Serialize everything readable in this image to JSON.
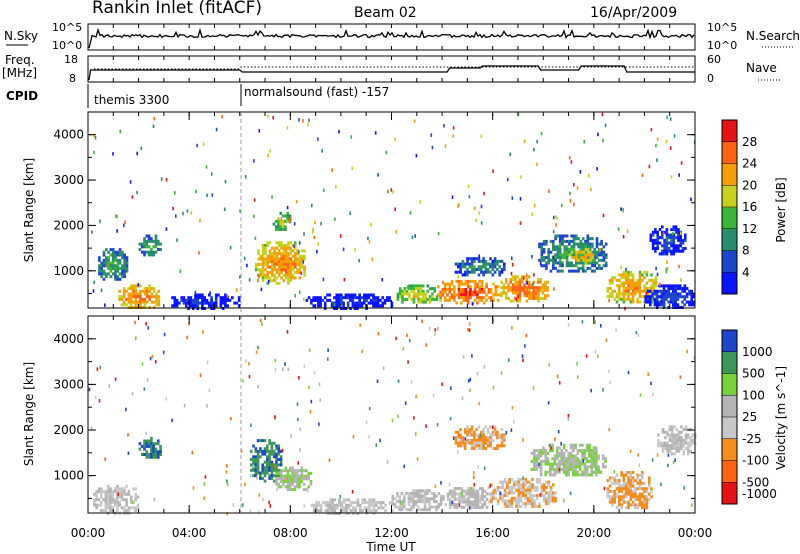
{
  "header": {
    "station": "Rankin Inlet (fitACF)",
    "beam": "Beam 02",
    "date": "16/Apr/2009"
  },
  "top_panels": {
    "nsky_label": "N.Sky",
    "nsky_ticks": [
      "10^5",
      "10^0"
    ],
    "nsearch_label": "N.Search",
    "nsearch_ticks": [
      "10^5",
      "10^0"
    ],
    "freq_label": "Freq.",
    "freq_unit": "[MHz]",
    "freq_ticks": [
      "18",
      "8"
    ],
    "nave_label": "Nave",
    "nave_ticks": [
      "60",
      "0"
    ],
    "cpid_label": "CPID",
    "cpid_segments": [
      {
        "start_hour": 0,
        "name": "themis 3300"
      },
      {
        "start_hour": 6,
        "name": "normalsound (fast) -157"
      }
    ]
  },
  "colors": {
    "power_scale": [
      "#0a14ff",
      "#1e46c8",
      "#2a8c6e",
      "#3cb43c",
      "#c8d21e",
      "#f5a00a",
      "#ff6414",
      "#e61414"
    ],
    "velocity_scale": [
      "#e61414",
      "#ff6414",
      "#f58c1e",
      "#c8c8c8",
      "#b4b4b4",
      "#78d23c",
      "#3c965a",
      "#1e46c8"
    ],
    "ground_scatter": "#a0a0a0",
    "trace": "#000000"
  },
  "chart_data": [
    {
      "type": "heatmap",
      "panel": "power",
      "ylabel": "Slant Range [km]",
      "yticks": [
        "1000",
        "2000",
        "3000",
        "4000"
      ],
      "ylim": [
        180,
        4500
      ],
      "xlim": [
        0,
        24
      ],
      "colorbar_label": "Power [dB]",
      "colorbar_ticks": [
        "4",
        "8",
        "12",
        "16",
        "20",
        "24",
        "28"
      ],
      "colorbar_range": [
        0,
        32
      ],
      "regions": [
        {
          "t0": 1.2,
          "t1": 2.8,
          "r0": 200,
          "r1": 700,
          "v": 26
        },
        {
          "t0": 0.4,
          "t1": 1.5,
          "r0": 800,
          "r1": 1500,
          "v": 14
        },
        {
          "t0": 2.0,
          "t1": 2.9,
          "r0": 1350,
          "r1": 1800,
          "v": 14
        },
        {
          "t0": 6.6,
          "t1": 8.6,
          "r0": 750,
          "r1": 1650,
          "v": 25
        },
        {
          "t0": 7.3,
          "t1": 8.0,
          "r0": 1900,
          "r1": 2300,
          "v": 18
        },
        {
          "t0": 13.8,
          "t1": 16.3,
          "r0": 300,
          "r1": 800,
          "v": 29
        },
        {
          "t0": 16.3,
          "t1": 18.2,
          "r0": 350,
          "r1": 900,
          "v": 27
        },
        {
          "t0": 12.2,
          "t1": 13.8,
          "r0": 300,
          "r1": 700,
          "v": 20
        },
        {
          "t0": 17.8,
          "t1": 20.5,
          "r0": 1000,
          "r1": 1800,
          "v": 14
        },
        {
          "t0": 19.0,
          "t1": 20.0,
          "r0": 1200,
          "r1": 1500,
          "v": 24
        },
        {
          "t0": 20.5,
          "t1": 22.5,
          "r0": 300,
          "r1": 1000,
          "v": 24
        },
        {
          "t0": 8.6,
          "t1": 12.0,
          "r0": 200,
          "r1": 500,
          "v": 6
        },
        {
          "t0": 3.2,
          "t1": 6.0,
          "r0": 200,
          "r1": 500,
          "v": 6
        },
        {
          "t0": 22.0,
          "t1": 24.0,
          "r0": 200,
          "r1": 700,
          "v": 8
        },
        {
          "t0": 14.5,
          "t1": 16.5,
          "r0": 900,
          "r1": 1300,
          "v": 12
        },
        {
          "t0": 22.2,
          "t1": 23.6,
          "r0": 1400,
          "r1": 2000,
          "v": 8
        }
      ]
    },
    {
      "type": "heatmap",
      "panel": "velocity",
      "ylabel": "Slant Range [km]",
      "yticks": [
        "1000",
        "2000",
        "3000",
        "4000"
      ],
      "ylim": [
        180,
        4500
      ],
      "xlim": [
        0,
        24
      ],
      "xlabel": "Time UT",
      "xticks": [
        "00:00",
        "04:00",
        "08:00",
        "12:00",
        "16:00",
        "20:00",
        "00:00"
      ],
      "colorbar_label": "Velocity [m s^-1]",
      "colorbar_ticks": [
        "1000",
        "500",
        "100",
        "25",
        "-25",
        "-100",
        "-500",
        "-1000"
      ],
      "colorbar_range": [
        -1000,
        1000
      ],
      "regions": [
        {
          "t0": 2.0,
          "t1": 2.9,
          "r0": 1400,
          "r1": 1850,
          "v": 700
        },
        {
          "t0": 6.4,
          "t1": 7.6,
          "r0": 900,
          "r1": 1800,
          "v": 700
        },
        {
          "t0": 7.4,
          "t1": 8.8,
          "r0": 700,
          "r1": 1200,
          "v": 200
        },
        {
          "t0": 12.0,
          "t1": 14.0,
          "r0": 250,
          "r1": 700,
          "v": 60
        },
        {
          "t0": 14.0,
          "t1": 16.0,
          "r0": 300,
          "r1": 750,
          "v": 80
        },
        {
          "t0": 15.8,
          "t1": 18.5,
          "r0": 350,
          "r1": 950,
          "v": -200
        },
        {
          "t0": 17.5,
          "t1": 20.5,
          "r0": 1000,
          "r1": 1700,
          "v": 200
        },
        {
          "t0": 20.5,
          "t1": 22.3,
          "r0": 300,
          "r1": 1100,
          "v": -300
        },
        {
          "t0": 0.2,
          "t1": 2.0,
          "r0": 200,
          "r1": 800,
          "v": 0
        },
        {
          "t0": 14.5,
          "t1": 16.5,
          "r0": 1600,
          "r1": 2100,
          "v": -300
        },
        {
          "t0": 22.5,
          "t1": 24.0,
          "r0": 1500,
          "r1": 2100,
          "v": 0
        },
        {
          "t0": 8.8,
          "t1": 12.0,
          "r0": 200,
          "r1": 500,
          "v": -60
        }
      ]
    }
  ]
}
